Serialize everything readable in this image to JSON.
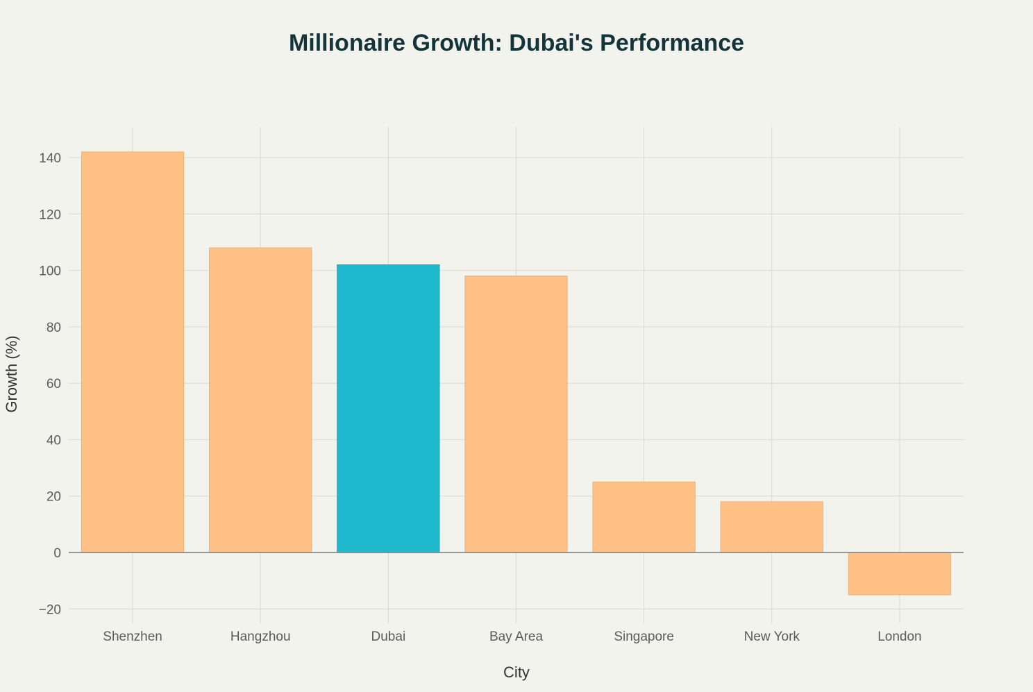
{
  "chart_data": {
    "type": "bar",
    "title": "Millionaire Growth: Dubai's Performance",
    "xlabel": "City",
    "ylabel": "Growth (%)",
    "categories": [
      "Shenzhen",
      "Hangzhou",
      "Dubai",
      "Bay Area",
      "Singapore",
      "New York",
      "London"
    ],
    "values": [
      142,
      108,
      102,
      98,
      25,
      18,
      -15
    ],
    "highlight": "Dubai",
    "ylim": [
      -25,
      150
    ],
    "yticks": [
      -20,
      0,
      20,
      40,
      60,
      80,
      100,
      120,
      140
    ],
    "ytick_labels": [
      "−20",
      "0",
      "20",
      "40",
      "60",
      "80",
      "100",
      "120",
      "140"
    ],
    "grid": true,
    "colors": {
      "bar": "#ffc185",
      "bar_stroke": "#e8b07a",
      "highlight": "#1fb8cd",
      "highlight_stroke": "#1aa5b8",
      "background": "#f3f3ee"
    }
  }
}
